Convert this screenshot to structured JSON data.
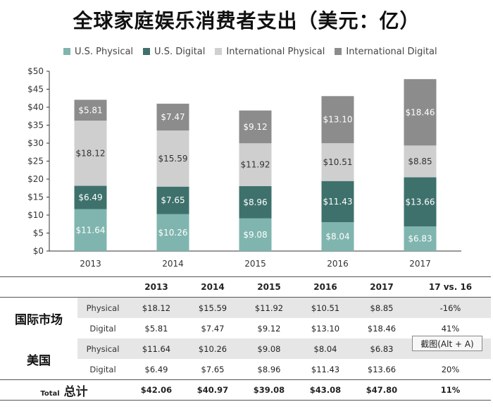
{
  "title": "全球家庭娱乐消费者支出（美元：亿）",
  "colors": {
    "us_physical": "#7fb5ae",
    "us_digital": "#3e716c",
    "intl_physical": "#cfcfcf",
    "intl_digital": "#8c8c8c"
  },
  "chart_data": {
    "type": "bar",
    "stacked": true,
    "categories": [
      "2013",
      "2014",
      "2015",
      "2016",
      "2017"
    ],
    "series": [
      {
        "name": "U.S. Physical",
        "color_key": "us_physical",
        "values": [
          11.64,
          10.26,
          9.08,
          8.04,
          6.83
        ],
        "labels": [
          "$11.64",
          "$10.26",
          "$9.08",
          "$8.04",
          "$6.83"
        ]
      },
      {
        "name": "U.S. Digital",
        "color_key": "us_digital",
        "values": [
          6.49,
          7.65,
          8.96,
          11.43,
          13.66
        ],
        "labels": [
          "$6.49",
          "$7.65",
          "$8.96",
          "$11.43",
          "$13.66"
        ]
      },
      {
        "name": "International Physical",
        "color_key": "intl_physical",
        "values": [
          18.12,
          15.59,
          11.92,
          10.51,
          8.85
        ],
        "labels": [
          "$18.12",
          "$15.59",
          "$11.92",
          "$10.51",
          "$8.85"
        ]
      },
      {
        "name": "International Digital",
        "color_key": "intl_digital",
        "values": [
          5.81,
          7.47,
          9.12,
          13.1,
          18.46
        ],
        "labels": [
          "$5.81",
          "$7.47",
          "$9.12",
          "$13.10",
          "$18.46"
        ]
      }
    ],
    "ylim": [
      0,
      50
    ],
    "yticks": [
      "$0",
      "$5",
      "$10",
      "$15",
      "$20",
      "$25",
      "$30",
      "$35",
      "$40",
      "$45",
      "$50"
    ],
    "legend_position": "top",
    "grid": false
  },
  "table": {
    "headers": [
      "",
      "",
      "2013",
      "2014",
      "2015",
      "2016",
      "2017",
      "17 vs. 16"
    ],
    "groups": [
      {
        "label": "国际市场",
        "rows": [
          {
            "sub": "Physical",
            "values": [
              "$18.12",
              "$15.59",
              "$11.92",
              "$10.51",
              "$8.85",
              "-16%"
            ]
          },
          {
            "sub": "Digital",
            "values": [
              "$5.81",
              "$7.47",
              "$9.12",
              "$13.10",
              "$18.46",
              "41%"
            ]
          }
        ]
      },
      {
        "label": "美国",
        "rows": [
          {
            "sub": "Physical",
            "values": [
              "$11.64",
              "$10.26",
              "$9.08",
              "$8.04",
              "$6.83",
              ""
            ]
          },
          {
            "sub": "Digital",
            "values": [
              "$6.49",
              "$7.65",
              "$8.96",
              "$11.43",
              "$13.66",
              "20%"
            ]
          }
        ]
      }
    ],
    "total": {
      "label_en": "Total",
      "label_zh": "总计",
      "values": [
        "$42.06",
        "$40.97",
        "$39.08",
        "$43.08",
        "$47.80",
        "11%"
      ]
    }
  },
  "tooltip": "截图(Alt + A)"
}
